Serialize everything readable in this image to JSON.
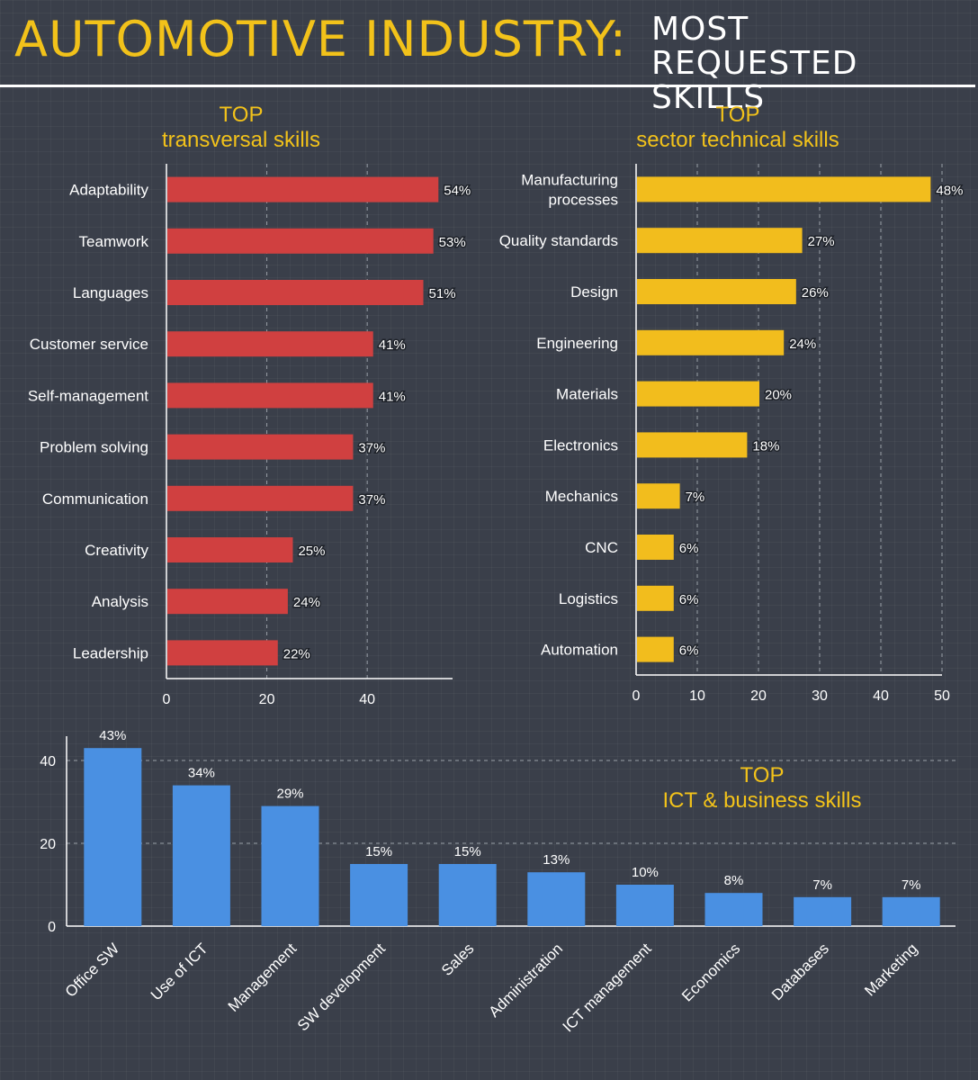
{
  "header": {
    "title": "AUTOMOTIVE INDUSTRY:",
    "subtitle": "MOST REQUESTED SKILLS"
  },
  "chart_data": [
    {
      "type": "bar",
      "orientation": "horizontal",
      "title_line1": "TOP",
      "title_line2": "transversal skills",
      "categories": [
        "Adaptability",
        "Teamwork",
        "Languages",
        "Customer service",
        "Self-management",
        "Problem solving",
        "Communication",
        "Creativity",
        "Analysis",
        "Leadership"
      ],
      "values": [
        54,
        53,
        51,
        41,
        41,
        37,
        37,
        25,
        24,
        22
      ],
      "value_labels": [
        "54%",
        "53%",
        "51%",
        "41%",
        "41%",
        "37%",
        "37%",
        "25%",
        "24%",
        "22%"
      ],
      "xlim": [
        0,
        57
      ],
      "xticks": [
        0,
        20,
        40
      ],
      "color": "#d04040",
      "grid": true
    },
    {
      "type": "bar",
      "orientation": "horizontal",
      "title_line1": "TOP",
      "title_line2": "sector technical skills",
      "categories": [
        "Manufacturing processes",
        "Quality standards",
        "Design",
        "Engineering",
        "Materials",
        "Electronics",
        "Mechanics",
        "CNC",
        "Logistics",
        "Automation"
      ],
      "values": [
        48,
        27,
        26,
        24,
        20,
        18,
        7,
        6,
        6,
        6
      ],
      "value_labels": [
        "48%",
        "27%",
        "26%",
        "24%",
        "20%",
        "18%",
        "7%",
        "6%",
        "6%",
        "6%"
      ],
      "xlim": [
        0,
        50
      ],
      "xticks": [
        0,
        10,
        20,
        30,
        40,
        50
      ],
      "color": "#f2bd1d",
      "grid": true
    },
    {
      "type": "bar",
      "orientation": "vertical",
      "title_line1": "TOP",
      "title_line2": "ICT & business skills",
      "categories": [
        "Office SW",
        "Use of ICT",
        "Management",
        "SW development",
        "Sales",
        "Administration",
        "ICT management",
        "Economics",
        "Databases",
        "Marketing"
      ],
      "values": [
        43,
        34,
        29,
        15,
        15,
        13,
        10,
        8,
        7,
        7
      ],
      "value_labels": [
        "43%",
        "34%",
        "29%",
        "15%",
        "15%",
        "13%",
        "10%",
        "8%",
        "7%",
        "7%"
      ],
      "ylim": [
        0,
        45
      ],
      "yticks": [
        0,
        20,
        40
      ],
      "color": "#4a90e2",
      "grid": true
    }
  ]
}
